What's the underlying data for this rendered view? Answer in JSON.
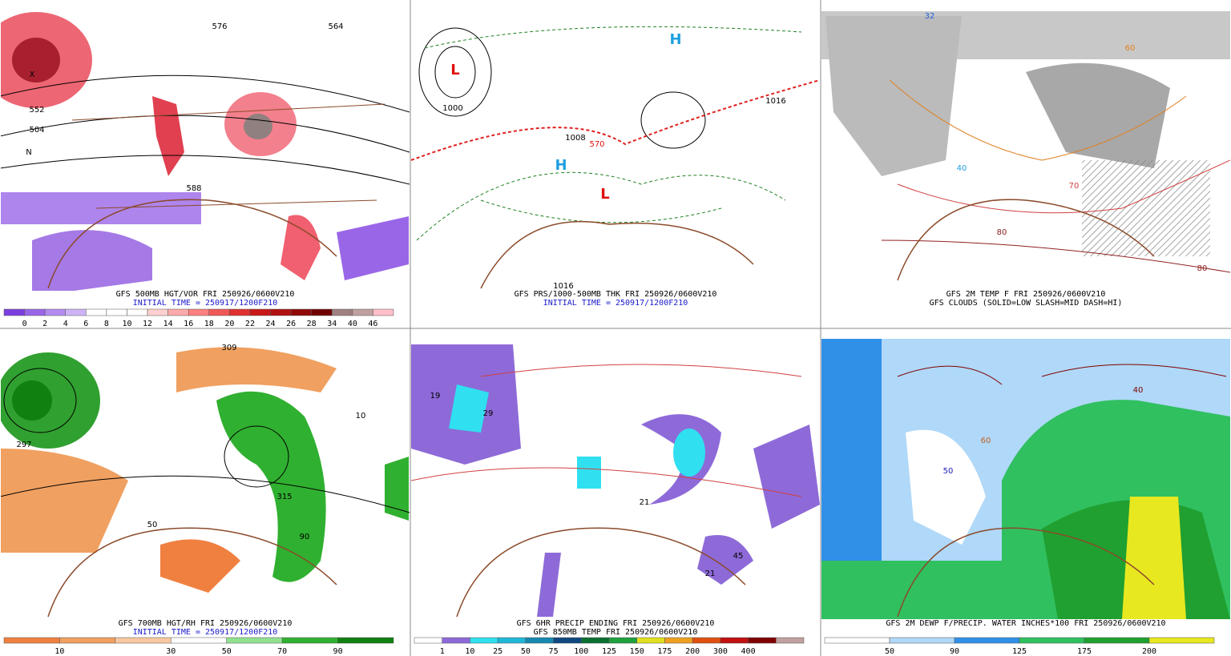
{
  "panels": [
    {
      "captions": [
        {
          "text": "GFS 500MB HGT/VOR FRI 250926/0600V210",
          "color": "#000000"
        },
        {
          "text": "INITIAL TIME = 250917/1200F210",
          "color": "#1a1acc"
        }
      ],
      "colorbar": {
        "colors": [
          "#7b3fe0",
          "#9a66e8",
          "#b48cf0",
          "#cdb3f5",
          "#ffffff",
          "#ffffff",
          "#ffffff",
          "#ffd0d0",
          "#ffaaaa",
          "#ff8080",
          "#f05858",
          "#e03030",
          "#c81818",
          "#b01010",
          "#900808",
          "#700000",
          "#a08080",
          "#c0a0a0",
          "#ffc0c8"
        ],
        "labels": [
          "0",
          "2",
          "4",
          "6",
          "8",
          "10",
          "12",
          "14",
          "16",
          "18",
          "20",
          "22",
          "24",
          "26",
          "28",
          "34",
          "40",
          "46"
        ]
      },
      "map_labels": [
        {
          "text": "576",
          "color": "#000"
        },
        {
          "text": "564",
          "color": "#000"
        },
        {
          "text": "552",
          "color": "#000"
        },
        {
          "text": "504",
          "color": "#000"
        },
        {
          "text": "588",
          "color": "#000"
        },
        {
          "text": "N",
          "color": "#000"
        },
        {
          "text": "X",
          "color": "#000"
        }
      ]
    },
    {
      "captions": [
        {
          "text": "GFS PRS/1000-500MB THK FRI 250926/0600V210",
          "color": "#000000"
        },
        {
          "text": "INITIAL TIME = 250917/1200F210",
          "color": "#1a1acc"
        }
      ],
      "colorbar": null,
      "map_labels": [
        {
          "text": "L",
          "color": "#e01010"
        },
        {
          "text": "1000",
          "color": "#000"
        },
        {
          "text": "1008",
          "color": "#000"
        },
        {
          "text": "1016",
          "color": "#000"
        },
        {
          "text": "H",
          "color": "#20a0e0"
        },
        {
          "text": "L",
          "color": "#e01010"
        },
        {
          "text": "1016",
          "color": "#000"
        },
        {
          "text": "H",
          "color": "#20a0e0"
        },
        {
          "text": "570",
          "color": "#e01010"
        }
      ]
    },
    {
      "captions": [
        {
          "text": "GFS 2M TEMP F FRI 250926/0600V210",
          "color": "#000000"
        },
        {
          "text": "GFS CLOUDS (SOLID=LOW SLASH=MID DASH=HI)",
          "color": "#000000"
        }
      ],
      "colorbar": null,
      "map_labels": [
        {
          "text": "32",
          "color": "#2060e0"
        },
        {
          "text": "40",
          "color": "#20a0e0"
        },
        {
          "text": "60",
          "color": "#e08020"
        },
        {
          "text": "70",
          "color": "#d04040"
        },
        {
          "text": "80",
          "color": "#902020"
        },
        {
          "text": "80",
          "color": "#902020"
        }
      ]
    },
    {
      "captions": [
        {
          "text": "GFS 700MB HGT/RH FRI 250926/0600V210",
          "color": "#000000"
        },
        {
          "text": "INITIAL TIME = 250917/1200F210",
          "color": "#1a1acc"
        }
      ],
      "colorbar": {
        "colors": [
          "#f08040",
          "#f0a060",
          "#f8c8a0",
          "#ffffff",
          "#90e090",
          "#30b030",
          "#108010"
        ],
        "labels": [
          "10",
          "",
          "30",
          "50",
          "70",
          "90"
        ]
      },
      "map_labels": [
        {
          "text": "309",
          "color": "#000"
        },
        {
          "text": "297",
          "color": "#000"
        },
        {
          "text": "315",
          "color": "#000"
        },
        {
          "text": "50",
          "color": "#000"
        },
        {
          "text": "90",
          "color": "#000"
        },
        {
          "text": "10",
          "color": "#000"
        }
      ]
    },
    {
      "captions": [
        {
          "text": "GFS 6HR PRECIP ENDING FRI 250926/0600V210",
          "color": "#000000"
        },
        {
          "text": "GFS 850MB TEMP FRI 250926/0600V210",
          "color": "#000000"
        }
      ],
      "colorbar": {
        "colors": [
          "#ffffff",
          "#8e6ad8",
          "#30e0f0",
          "#20b8d8",
          "#1888b0",
          "#104880",
          "#0a7030",
          "#20a040",
          "#e0e020",
          "#f0a020",
          "#e05010",
          "#c01010",
          "#800000",
          "#c0a0a0"
        ],
        "labels": [
          "1",
          "10",
          "25",
          "50",
          "75",
          "100",
          "125",
          "150",
          "175",
          "200",
          "300",
          "400"
        ]
      },
      "map_labels": [
        {
          "text": "19",
          "color": "#000"
        },
        {
          "text": "29",
          "color": "#000"
        },
        {
          "text": "21",
          "color": "#000"
        },
        {
          "text": "45",
          "color": "#000"
        },
        {
          "text": "21",
          "color": "#000"
        }
      ]
    },
    {
      "captions": [
        {
          "text": "GFS 2M DEWP F/PRECIP. WATER INCHES*100 FRI 250926/0600V210",
          "color": "#000000"
        }
      ],
      "colorbar": {
        "colors": [
          "#ffffff",
          "#b0d8f8",
          "#3090e8",
          "#30c060",
          "#20a030",
          "#e8e820"
        ],
        "labels": [
          "50",
          "90",
          "125",
          "175",
          "200"
        ]
      },
      "map_labels": [
        {
          "text": "40",
          "color": "#800000"
        },
        {
          "text": "50",
          "color": "#2020c0"
        },
        {
          "text": "60",
          "color": "#c06020"
        }
      ]
    }
  ]
}
